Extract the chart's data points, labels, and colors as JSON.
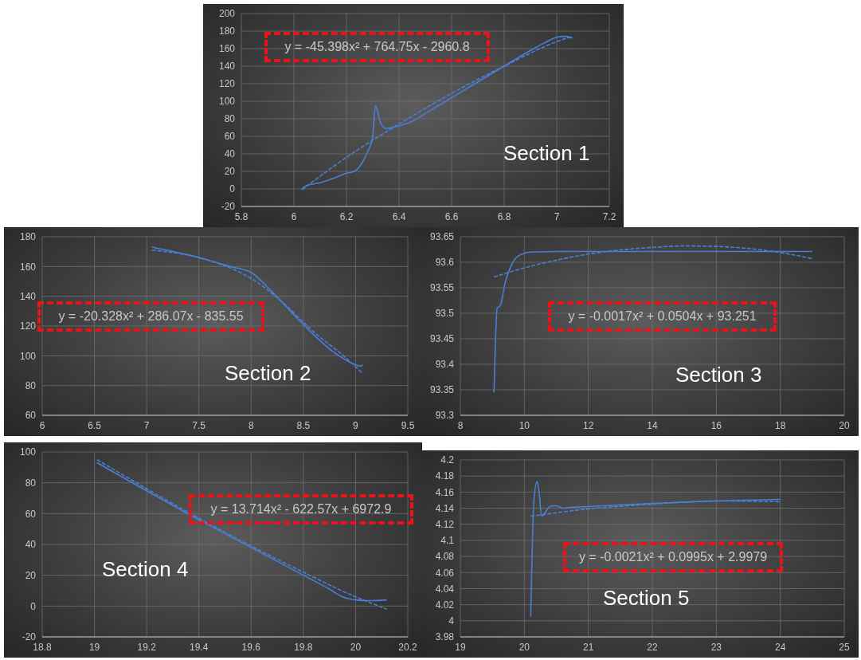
{
  "chart_data": [
    {
      "type": "line",
      "annotations": [
        "y = -45.398x² + 764.75x - 2960.8",
        "Section 1"
      ],
      "xlim": [
        5.8,
        7.2
      ],
      "xticks": [
        5.8,
        6,
        6.2,
        6.4,
        6.6,
        6.8,
        7,
        7.2
      ],
      "ylim": [
        -20,
        200
      ],
      "yticks": [
        -20,
        0,
        20,
        40,
        60,
        80,
        100,
        120,
        140,
        160,
        180,
        200
      ],
      "grid": true,
      "marker": "none",
      "series": [
        {
          "color": "#4a7fd6",
          "line_style": "solid",
          "x": [
            6.03,
            6.05,
            6.1,
            6.15,
            6.2,
            6.23,
            6.26,
            6.28,
            6.3,
            6.31,
            6.33,
            6.35,
            6.4,
            6.45,
            6.5,
            6.6,
            6.7,
            6.8,
            6.9,
            6.95,
            7.0,
            7.03,
            7.06
          ],
          "values": [
            0,
            4,
            7,
            12,
            18,
            20,
            30,
            42,
            60,
            95,
            75,
            69,
            72,
            77,
            86,
            104,
            122,
            140,
            158,
            166,
            173,
            174,
            172
          ]
        },
        {
          "color": "#4a7fd6",
          "line_style": "dashed",
          "x": [
            6.03,
            6.2,
            6.4,
            6.6,
            6.8,
            7.0,
            7.06
          ],
          "values": [
            -1,
            36,
            74,
            109,
            140,
            168,
            174
          ]
        }
      ]
    },
    {
      "type": "line",
      "annotations": [
        "y = -20.328x² + 286.07x - 835.55",
        "Section 2"
      ],
      "xlim": [
        6,
        9.5
      ],
      "xticks": [
        6,
        6.5,
        7,
        7.5,
        8,
        8.5,
        9,
        9.5
      ],
      "ylim": [
        60,
        180
      ],
      "yticks": [
        60,
        80,
        100,
        120,
        140,
        160,
        180
      ],
      "grid": true,
      "marker": "none",
      "series": [
        {
          "color": "#4a7fd6",
          "line_style": "solid",
          "x": [
            7.05,
            7.5,
            7.8,
            8.0,
            8.2,
            8.5,
            8.8,
            9.0,
            9.05,
            9.07
          ],
          "values": [
            173,
            166,
            160,
            156,
            143,
            121,
            102,
            94,
            93,
            94
          ]
        },
        {
          "color": "#4a7fd6",
          "line_style": "dashed",
          "x": [
            7.05,
            7.5,
            7.8,
            8.0,
            8.3,
            8.6,
            8.9,
            9.07
          ],
          "values": [
            171,
            166,
            159,
            152,
            136,
            116,
            99,
            88
          ]
        }
      ]
    },
    {
      "type": "line",
      "annotations": [
        "y = -0.0017x² + 0.0504x + 93.251",
        "Section 3"
      ],
      "xlim": [
        8,
        20
      ],
      "xticks": [
        8,
        10,
        12,
        14,
        16,
        18,
        20
      ],
      "ylim": [
        93.3,
        93.65
      ],
      "yticks": [
        93.3,
        93.35,
        93.4,
        93.45,
        93.5,
        93.55,
        93.6,
        93.65
      ],
      "grid": true,
      "marker": "none",
      "series": [
        {
          "color": "#4a7fd6",
          "line_style": "solid",
          "x": [
            9.05,
            9.1,
            9.15,
            9.25,
            9.4,
            9.6,
            9.8,
            10.2,
            11,
            14,
            19
          ],
          "values": [
            93.345,
            93.45,
            93.51,
            93.515,
            93.56,
            93.595,
            93.612,
            93.62,
            93.621,
            93.621,
            93.621
          ]
        },
        {
          "color": "#4a7fd6",
          "line_style": "dashed",
          "x": [
            9.05,
            10,
            11,
            12,
            13,
            14,
            15,
            16,
            17,
            18,
            19
          ],
          "values": [
            93.571,
            93.589,
            93.604,
            93.616,
            93.624,
            93.629,
            93.632,
            93.631,
            93.627,
            93.619,
            93.607
          ]
        }
      ]
    },
    {
      "type": "line",
      "annotations": [
        "y = 13.714x² - 622.57x + 6972.9",
        "Section 4"
      ],
      "xlim": [
        18.8,
        20.2
      ],
      "xticks": [
        18.8,
        19,
        19.2,
        19.4,
        19.6,
        19.8,
        20,
        20.2
      ],
      "ylim": [
        -20,
        100
      ],
      "yticks": [
        -20,
        0,
        20,
        40,
        60,
        80,
        100
      ],
      "grid": true,
      "marker": "none",
      "series": [
        {
          "color": "#4a7fd6",
          "line_style": "solid",
          "x": [
            19.01,
            19.4,
            19.6,
            19.8,
            19.9,
            19.95,
            20.0,
            20.05,
            20.12
          ],
          "values": [
            93,
            56,
            38,
            20,
            11,
            6,
            4,
            3.5,
            4
          ]
        },
        {
          "color": "#4a7fd6",
          "line_style": "dashed",
          "x": [
            19.01,
            19.4,
            19.6,
            19.8,
            20.0,
            20.12
          ],
          "values": [
            95,
            57,
            39,
            22,
            6,
            -2
          ]
        }
      ]
    },
    {
      "type": "line",
      "annotations": [
        "y = -0.0021x² + 0.0995x + 2.9979",
        "Section 5"
      ],
      "xlim": [
        19,
        25
      ],
      "xticks": [
        19,
        20,
        21,
        22,
        23,
        24,
        25
      ],
      "ylim": [
        3.98,
        4.2
      ],
      "yticks": [
        3.98,
        4,
        4.02,
        4.04,
        4.06,
        4.08,
        4.1,
        4.12,
        4.14,
        4.16,
        4.18,
        4.2
      ],
      "grid": true,
      "marker": "none",
      "series": [
        {
          "color": "#4a7fd6",
          "line_style": "solid",
          "x": [
            20.1,
            20.15,
            20.2,
            20.23,
            20.27,
            20.3,
            20.4,
            20.5,
            20.6,
            20.7,
            21,
            22,
            23,
            24
          ],
          "values": [
            4.005,
            4.15,
            4.173,
            4.16,
            4.13,
            4.132,
            4.142,
            4.143,
            4.14,
            4.141,
            4.142,
            4.146,
            4.149,
            4.151
          ]
        },
        {
          "color": "#4a7fd6",
          "line_style": "dashed",
          "x": [
            20.1,
            21,
            22,
            23,
            24
          ],
          "values": [
            4.13,
            4.139,
            4.145,
            4.149,
            4.148
          ]
        }
      ]
    }
  ]
}
